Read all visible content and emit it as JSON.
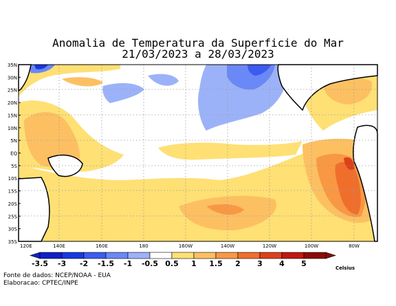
{
  "header": {
    "title": "Anomalia de Temperatura da Superficie do Mar",
    "subtitle": "21/03/2023 a 28/03/2023"
  },
  "map_axes": {
    "lat_labels": [
      "35N",
      "30N",
      "25N",
      "20N",
      "15N",
      "10N",
      "5N",
      "EQ",
      "5S",
      "10S",
      "15S",
      "20S",
      "25S",
      "30S",
      "35S"
    ],
    "lon_labels": [
      "120E",
      "140E",
      "160E",
      "180",
      "160W",
      "140W",
      "120W",
      "100W",
      "80W"
    ]
  },
  "legend": {
    "unit": "Celsius",
    "classes": [
      {
        "label": "-3.5",
        "color": "#1020c8"
      },
      {
        "label": "-3",
        "color": "#1838e0"
      },
      {
        "label": "-2",
        "color": "#3c5cf0"
      },
      {
        "label": "-1.5",
        "color": "#6a88f6"
      },
      {
        "label": "-1",
        "color": "#9cb2f8"
      },
      {
        "label": "-0.5",
        "color": "#ffffff"
      },
      {
        "label": "0.5",
        "color": "#fee074"
      },
      {
        "label": "1",
        "color": "#fcc062"
      },
      {
        "label": "1.5",
        "color": "#f89844"
      },
      {
        "label": "2",
        "color": "#f06e2c"
      },
      {
        "label": "3",
        "color": "#dc401c"
      },
      {
        "label": "4",
        "color": "#c01810"
      },
      {
        "label": "5",
        "color": "#8c0a08"
      }
    ]
  },
  "credits": {
    "source": "Fonte de dados: NCEP/NOAA - EUA",
    "author": "Elaboracao: CPTEC/INPE"
  }
}
